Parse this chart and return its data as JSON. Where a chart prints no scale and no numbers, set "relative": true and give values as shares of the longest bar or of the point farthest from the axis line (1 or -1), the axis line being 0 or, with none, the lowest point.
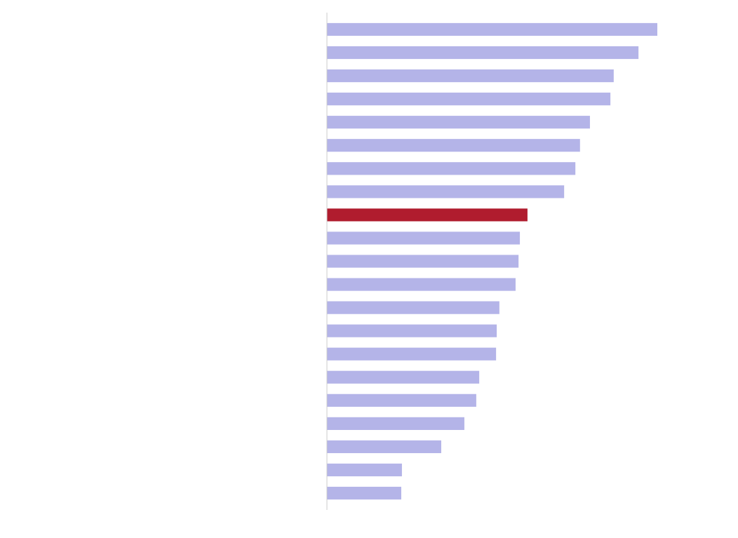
{
  "chart_data": {
    "type": "bar",
    "orientation": "horizontal",
    "relative": true,
    "categories": [
      null,
      null,
      null,
      null,
      null,
      null,
      null,
      null,
      null,
      null,
      null,
      null,
      null,
      null,
      null,
      null,
      null,
      null,
      null,
      null,
      null
    ],
    "values": [
      1,
      0.943,
      0.868,
      0.858,
      0.796,
      0.766,
      0.752,
      0.718,
      0.607,
      0.584,
      0.58,
      0.571,
      0.522,
      0.514,
      0.512,
      0.461,
      0.452,
      0.416,
      0.346,
      0.227,
      0.225
    ],
    "colors": [
      "#b4b4e8",
      "#b4b4e8",
      "#b4b4e8",
      "#b4b4e8",
      "#b4b4e8",
      "#b4b4e8",
      "#b4b4e8",
      "#b4b4e8",
      "#b01c2e",
      "#b4b4e8",
      "#b4b4e8",
      "#b4b4e8",
      "#b4b4e8",
      "#b4b4e8",
      "#b4b4e8",
      "#b4b4e8",
      "#b4b4e8",
      "#b4b4e8",
      "#b4b4e8",
      "#b4b4e8",
      "#b4b4e8"
    ]
  }
}
